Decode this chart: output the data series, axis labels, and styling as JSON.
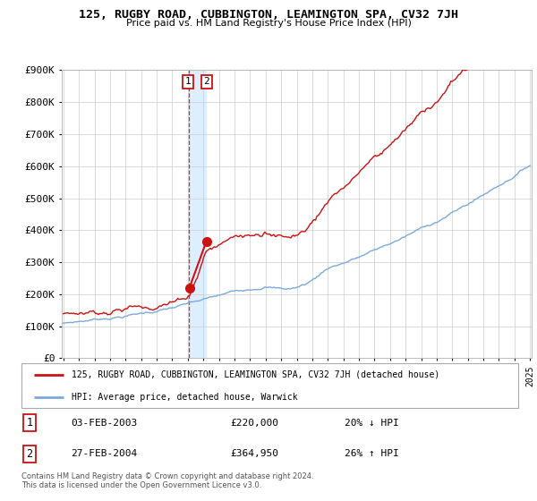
{
  "title": "125, RUGBY ROAD, CUBBINGTON, LEAMINGTON SPA, CV32 7JH",
  "subtitle": "Price paid vs. HM Land Registry's House Price Index (HPI)",
  "legend_line1": "125, RUGBY ROAD, CUBBINGTON, LEAMINGTON SPA, CV32 7JH (detached house)",
  "legend_line2": "HPI: Average price, detached house, Warwick",
  "sale1_date": "03-FEB-2003",
  "sale1_price": 220000,
  "sale1_label": "20% ↓ HPI",
  "sale2_date": "27-FEB-2004",
  "sale2_price": 364950,
  "sale2_label": "26% ↑ HPI",
  "hpi_color": "#7aaadd",
  "price_color": "#cc1111",
  "highlight_color": "#ddeeff",
  "dashed_line_color": "#cc1111",
  "footer": "Contains HM Land Registry data © Crown copyright and database right 2024.\nThis data is licensed under the Open Government Licence v3.0.",
  "ylim": [
    0,
    900000
  ],
  "y_ticks": [
    0,
    100000,
    200000,
    300000,
    400000,
    500000,
    600000,
    700000,
    800000,
    900000
  ],
  "y_tick_labels": [
    "£0",
    "£100K",
    "£200K",
    "£300K",
    "£400K",
    "£500K",
    "£600K",
    "£700K",
    "£800K",
    "£900K"
  ],
  "start_year": 1995,
  "end_year": 2025,
  "sale1_x": 2003.08,
  "sale2_x": 2004.16
}
